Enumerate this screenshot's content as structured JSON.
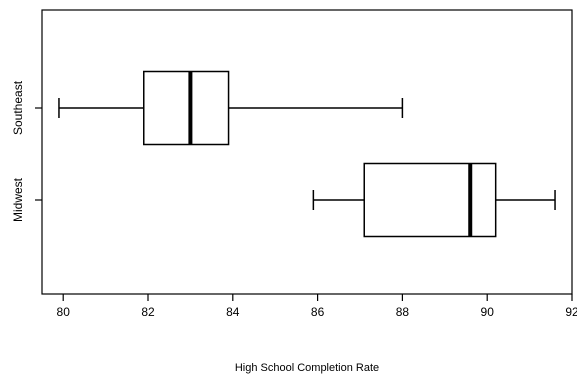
{
  "chart_data": {
    "type": "boxplot",
    "orientation": "horizontal",
    "title": "",
    "xlabel": "High School Completion Rate",
    "ylabel": "",
    "xlim": [
      79.5,
      92
    ],
    "xticks": [
      80,
      82,
      84,
      86,
      88,
      90,
      92
    ],
    "xtick_labels": [
      "80",
      "82",
      "84",
      "86",
      "88",
      "90",
      "92"
    ],
    "grid": false,
    "categories": [
      "Southeast",
      "Midwest"
    ],
    "series": [
      {
        "category": "Southeast",
        "min": 79.9,
        "q1": 81.9,
        "median": 83.0,
        "q3": 83.9,
        "max": 88.0
      },
      {
        "category": "Midwest",
        "min": 85.9,
        "q1": 87.1,
        "median": 89.6,
        "q3": 90.2,
        "max": 91.6
      }
    ],
    "colors": {
      "box_fill": "#ffffff",
      "stroke": "#000000",
      "background": "#ffffff"
    }
  }
}
